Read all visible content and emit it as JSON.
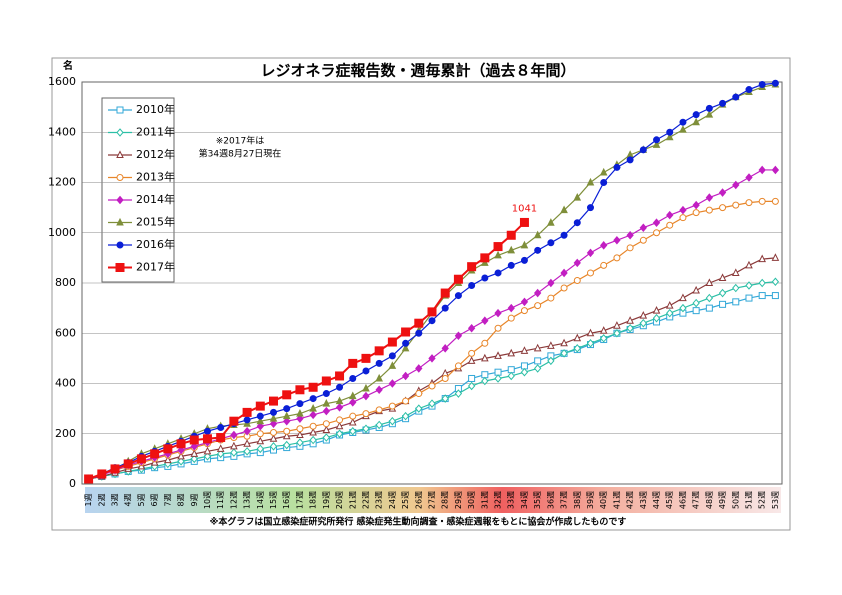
{
  "chart_data": {
    "type": "line",
    "title": "レジオネラ症報告数・週毎累計（過去８年間）",
    "y_unit": "名",
    "note": [
      "※2017年は",
      "第34週8月27日現在"
    ],
    "source": "※本グラフは国立感染症研究所発行 感染症発生動向調査・感染症週報をもとに協会が作成したものです",
    "categories": [
      "1週",
      "2週",
      "3週",
      "4週",
      "5週",
      "6週",
      "7週",
      "8週",
      "9週",
      "10週",
      "11週",
      "12週",
      "13週",
      "14週",
      "15週",
      "16週",
      "17週",
      "18週",
      "19週",
      "20週",
      "21週",
      "22週",
      "23週",
      "24週",
      "25週",
      "26週",
      "27週",
      "28週",
      "29週",
      "30週",
      "31週",
      "32週",
      "33週",
      "34週",
      "35週",
      "36週",
      "37週",
      "38週",
      "39週",
      "40週",
      "41週",
      "42週",
      "43週",
      "44週",
      "45週",
      "46週",
      "47週",
      "48週",
      "49週",
      "50週",
      "51週",
      "52週",
      "53週"
    ],
    "ylim": [
      0,
      1600
    ],
    "yticks": [
      0,
      200,
      400,
      600,
      800,
      1000,
      1200,
      1400,
      1600
    ],
    "grid": true,
    "legend": "upper left",
    "series": [
      {
        "name": "2010年",
        "color": "#33a8d8",
        "marker": "square-open",
        "values": [
          20,
          30,
          40,
          50,
          55,
          65,
          70,
          80,
          90,
          100,
          105,
          110,
          120,
          125,
          135,
          145,
          150,
          160,
          175,
          195,
          205,
          215,
          225,
          240,
          260,
          290,
          310,
          340,
          380,
          420,
          435,
          445,
          455,
          470,
          490,
          510,
          520,
          535,
          555,
          575,
          600,
          615,
          630,
          645,
          665,
          680,
          690,
          700,
          715,
          725,
          740,
          750,
          750
        ]
      },
      {
        "name": "2011年",
        "color": "#2cbfa6",
        "marker": "diamond-open",
        "values": [
          20,
          30,
          40,
          50,
          60,
          70,
          80,
          90,
          100,
          110,
          120,
          125,
          130,
          140,
          150,
          155,
          165,
          175,
          185,
          200,
          210,
          220,
          235,
          250,
          270,
          300,
          320,
          340,
          360,
          390,
          410,
          420,
          430,
          445,
          460,
          490,
          520,
          540,
          560,
          580,
          600,
          620,
          640,
          660,
          680,
          700,
          720,
          740,
          760,
          780,
          790,
          800,
          805
        ]
      },
      {
        "name": "2012年",
        "color": "#8b3a3a",
        "marker": "triangle-open",
        "values": [
          20,
          30,
          45,
          60,
          70,
          85,
          95,
          110,
          120,
          130,
          140,
          150,
          160,
          170,
          180,
          190,
          195,
          205,
          215,
          230,
          245,
          270,
          290,
          300,
          330,
          370,
          400,
          440,
          460,
          490,
          500,
          510,
          520,
          530,
          540,
          550,
          560,
          580,
          600,
          610,
          630,
          650,
          670,
          690,
          710,
          740,
          770,
          800,
          820,
          840,
          870,
          895,
          900
        ]
      },
      {
        "name": "2013年",
        "color": "#e8862a",
        "marker": "circle-open",
        "values": [
          20,
          40,
          55,
          70,
          85,
          100,
          115,
          130,
          145,
          160,
          175,
          185,
          190,
          200,
          205,
          210,
          220,
          230,
          240,
          255,
          270,
          280,
          295,
          310,
          330,
          360,
          390,
          420,
          470,
          520,
          560,
          620,
          660,
          690,
          710,
          740,
          780,
          810,
          840,
          870,
          900,
          940,
          970,
          1000,
          1030,
          1060,
          1080,
          1090,
          1100,
          1110,
          1120,
          1125,
          1125
        ]
      },
      {
        "name": "2014年",
        "color": "#c21fc2",
        "marker": "diamond",
        "values": [
          20,
          35,
          55,
          75,
          90,
          105,
          120,
          135,
          150,
          165,
          180,
          195,
          210,
          230,
          240,
          250,
          260,
          275,
          290,
          305,
          325,
          350,
          375,
          400,
          430,
          460,
          500,
          540,
          590,
          620,
          650,
          680,
          700,
          725,
          760,
          800,
          840,
          880,
          920,
          950,
          970,
          990,
          1020,
          1040,
          1070,
          1090,
          1110,
          1140,
          1160,
          1190,
          1220,
          1250,
          1250
        ]
      },
      {
        "name": "2015年",
        "color": "#7f8f3a",
        "marker": "triangle",
        "values": [
          20,
          40,
          60,
          90,
          120,
          140,
          160,
          180,
          200,
          220,
          230,
          235,
          240,
          250,
          260,
          270,
          280,
          300,
          320,
          330,
          350,
          380,
          420,
          470,
          540,
          610,
          680,
          750,
          800,
          850,
          880,
          910,
          930,
          950,
          990,
          1040,
          1090,
          1140,
          1200,
          1240,
          1270,
          1310,
          1330,
          1350,
          1380,
          1410,
          1440,
          1470,
          1510,
          1540,
          1560,
          1580,
          1590
        ]
      },
      {
        "name": "2016年",
        "color": "#0a1fd6",
        "marker": "circle",
        "values": [
          20,
          40,
          65,
          85,
          110,
          130,
          150,
          170,
          190,
          210,
          225,
          240,
          255,
          270,
          285,
          300,
          320,
          340,
          360,
          385,
          420,
          450,
          480,
          510,
          560,
          600,
          650,
          700,
          750,
          790,
          820,
          840,
          870,
          890,
          930,
          960,
          990,
          1040,
          1100,
          1200,
          1260,
          1290,
          1330,
          1370,
          1400,
          1440,
          1470,
          1495,
          1515,
          1540,
          1570,
          1590,
          1595
        ]
      },
      {
        "name": "2017年",
        "color": "#ee1111",
        "marker": "square",
        "values": [
          20,
          40,
          60,
          80,
          100,
          120,
          140,
          160,
          175,
          180,
          185,
          250,
          285,
          310,
          330,
          355,
          375,
          385,
          410,
          430,
          480,
          500,
          530,
          565,
          605,
          640,
          685,
          760,
          815,
          865,
          900,
          945,
          990,
          1041,
          null,
          null,
          null,
          null,
          null,
          null,
          null,
          null,
          null,
          null,
          null,
          null,
          null,
          null,
          null,
          null,
          null,
          null,
          null
        ],
        "labeled_point": 33
      }
    ]
  }
}
